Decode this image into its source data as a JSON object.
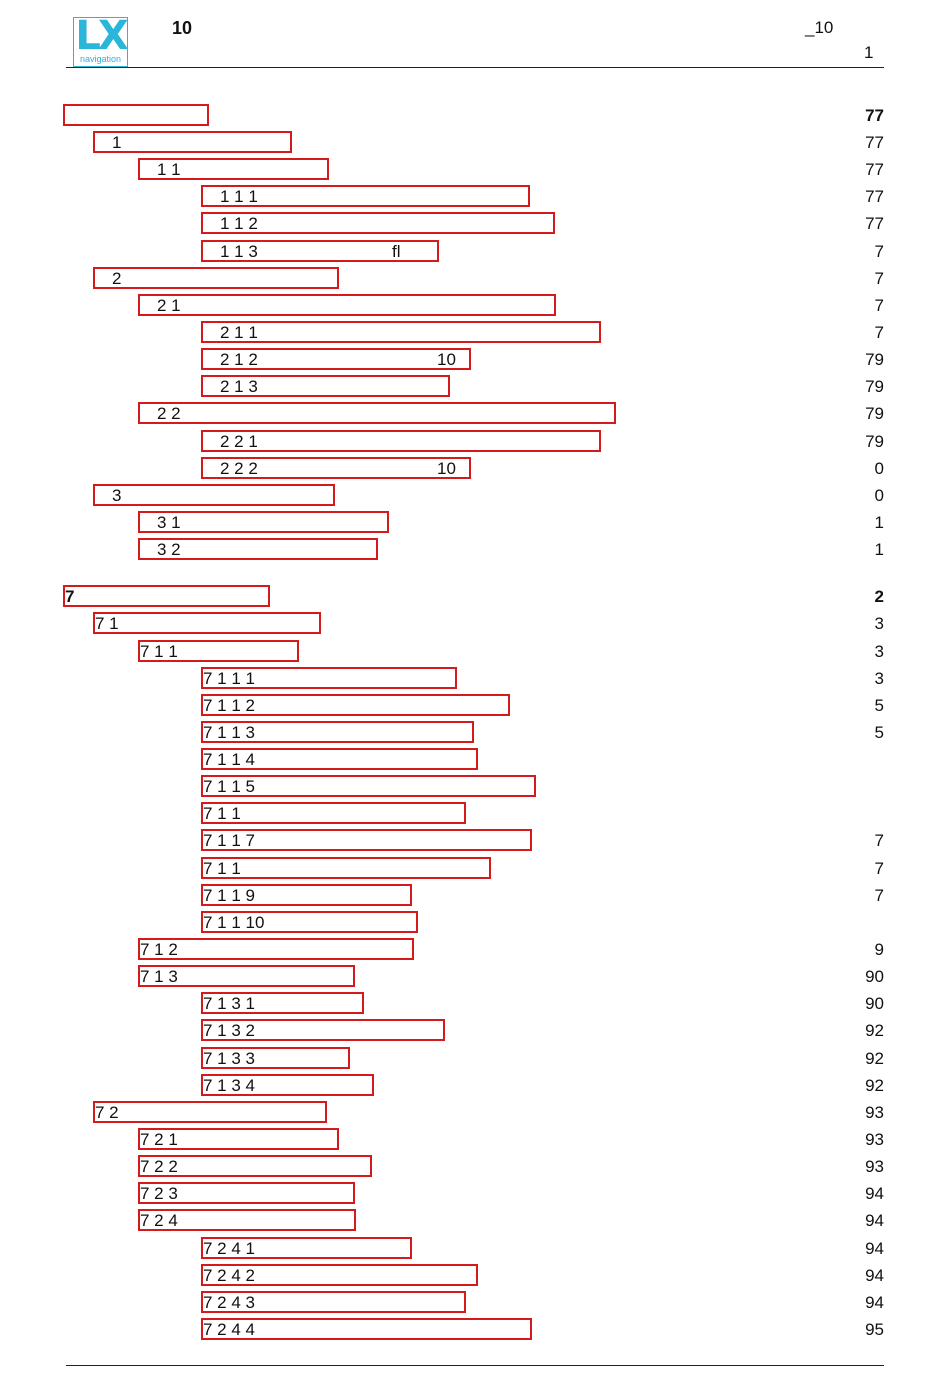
{
  "header": {
    "logo_text": "LX",
    "logo_subtext": "navigation",
    "left_text": "10",
    "right_text": "_10",
    "page_number": "1"
  },
  "toc": [
    {
      "label": "",
      "page": "77",
      "bold": true
    },
    {
      "label": "1",
      "page": "77"
    },
    {
      "label": "1 1",
      "page": "77"
    },
    {
      "label": "1 1 1",
      "page": "77"
    },
    {
      "label": "1 1 2",
      "page": "77"
    },
    {
      "label": "1 1 3",
      "extra": "fl",
      "page": "7"
    },
    {
      "label": "2",
      "page": "7"
    },
    {
      "label": "2 1",
      "page": "7"
    },
    {
      "label": "2 1 1",
      "page": "7"
    },
    {
      "label": "2 1 2",
      "extra": "10",
      "page": "79"
    },
    {
      "label": "2 1 3",
      "page": "79"
    },
    {
      "label": "2 2",
      "page": "79"
    },
    {
      "label": "2 2 1",
      "page": "79"
    },
    {
      "label": "2 2 2",
      "extra": "10",
      "page": "0"
    },
    {
      "label": "3",
      "page": "0"
    },
    {
      "label": "3 1",
      "page": "1"
    },
    {
      "label": "3 2",
      "page": "1"
    },
    {
      "label": "7",
      "page": "2",
      "bold": true
    },
    {
      "label": "7 1",
      "page": "3"
    },
    {
      "label": "7 1 1",
      "page": "3"
    },
    {
      "label": "7 1 1 1",
      "page": "3"
    },
    {
      "label": "7 1 1 2",
      "page": "5"
    },
    {
      "label": "7 1 1 3",
      "page": "5"
    },
    {
      "label": "7 1 1 4",
      "page": ""
    },
    {
      "label": "7 1 1 5",
      "page": ""
    },
    {
      "label": "7 1 1",
      "page": ""
    },
    {
      "label": "7 1 1 7",
      "page": "7"
    },
    {
      "label": "7 1 1",
      "page": "7"
    },
    {
      "label": "7 1 1 9",
      "page": "7"
    },
    {
      "label": "7 1 1 10",
      "page": ""
    },
    {
      "label": "7 1 2",
      "page": "9"
    },
    {
      "label": "7 1 3",
      "page": "90"
    },
    {
      "label": "7 1 3 1",
      "page": "90"
    },
    {
      "label": "7 1 3 2",
      "page": "92"
    },
    {
      "label": "7 1 3 3",
      "page": "92"
    },
    {
      "label": "7 1 3 4",
      "page": "92"
    },
    {
      "label": "7 2",
      "page": "93"
    },
    {
      "label": "7 2 1",
      "page": "93"
    },
    {
      "label": "7 2 2",
      "page": "93"
    },
    {
      "label": "7 2 3",
      "page": "94"
    },
    {
      "label": "7 2 4",
      "page": "94"
    },
    {
      "label": "7 2 4 1",
      "page": "94"
    },
    {
      "label": "7 2 4 2",
      "page": "94"
    },
    {
      "label": "7 2 4 3",
      "page": "94"
    },
    {
      "label": "7 2 4 4",
      "page": "95"
    }
  ],
  "colors": {
    "link_box": "#d41a1a",
    "logo": "#29b6d8"
  }
}
